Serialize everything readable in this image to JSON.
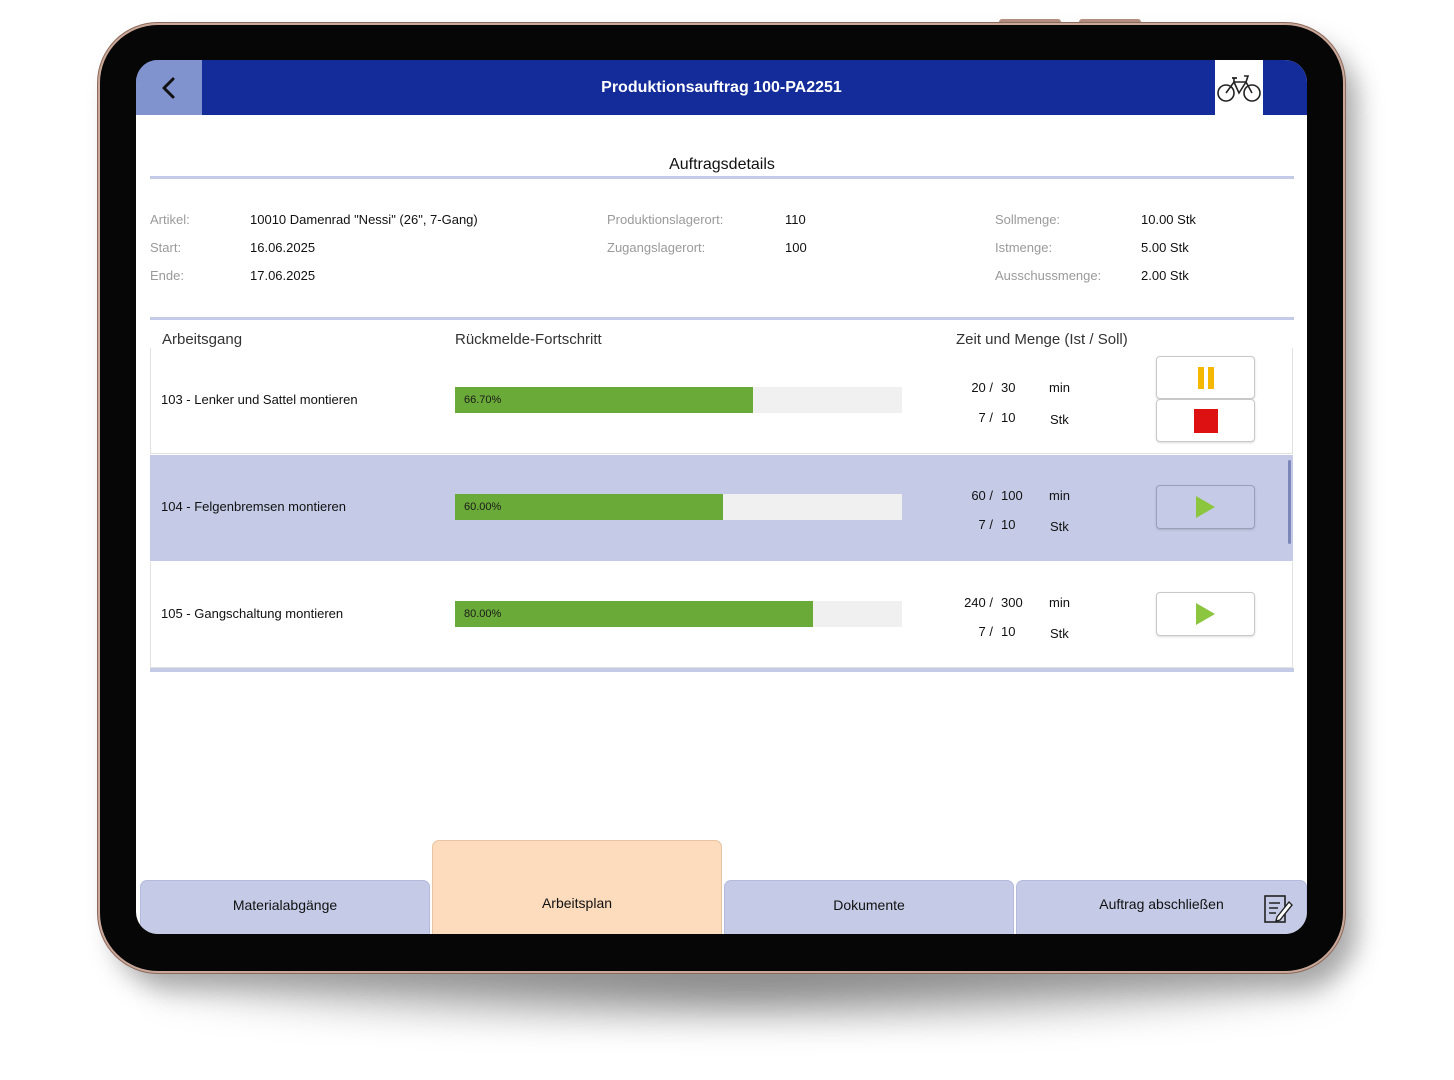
{
  "header": {
    "title": "Produktionsauftrag 100-PA2251",
    "back_icon": "chevron-left-icon",
    "logo_icon": "bicycle-icon"
  },
  "details": {
    "title": "Auftragsdetails",
    "artikel_label": "Artikel:",
    "artikel_value": "10010 Damenrad \"Nessi\" (26\", 7-Gang)",
    "start_label": "Start:",
    "start_value": "16.06.2025",
    "ende_label": "Ende:",
    "ende_value": "17.06.2025",
    "prodlager_label": "Produktionslagerort:",
    "prodlager_value": "110",
    "zugang_label": "Zugangslagerort:",
    "zugang_value": "100",
    "soll_label": "Sollmenge:",
    "soll_value": "10.00 Stk",
    "ist_label": "Istmenge:",
    "ist_value": "5.00 Stk",
    "ausschuss_label": "Ausschussmenge:",
    "ausschuss_value": "2.00 Stk"
  },
  "table": {
    "col_operation": "Arbeitsgang",
    "col_progress": "Rückmelde-Fortschritt",
    "col_time_qty": "Zeit und Menge (Ist / Soll)",
    "rows": [
      {
        "operation": "103 - Lenker und Sattel montieren",
        "progress": 0.667,
        "progress_label": "66.70%",
        "time_ist": "20 /",
        "time_soll": "30",
        "time_unit": "min",
        "qty_ist": "7 /",
        "qty_soll": "10",
        "qty_unit": "Stk",
        "actions": [
          "pause",
          "stop"
        ],
        "selected": false
      },
      {
        "operation": "104 - Felgenbremsen montieren",
        "progress": 0.6,
        "progress_label": "60.00%",
        "time_ist": "60 /",
        "time_soll": "100",
        "time_unit": "min",
        "qty_ist": "7 /",
        "qty_soll": "10",
        "qty_unit": "Stk",
        "actions": [
          "play"
        ],
        "selected": true
      },
      {
        "operation": "105 - Gangschaltung montieren",
        "progress": 0.8,
        "progress_label": "80.00%",
        "time_ist": "240 /",
        "time_soll": "300",
        "time_unit": "min",
        "qty_ist": "7 /",
        "qty_soll": "10",
        "qty_unit": "Stk",
        "actions": [
          "play"
        ],
        "selected": false
      }
    ]
  },
  "tabs": {
    "materialabgaenge": "Materialabgänge",
    "arbeitsplan": "Arbeitsplan",
    "dokumente": "Dokumente",
    "abschliessen": "Auftrag abschließen",
    "active": "arbeitsplan",
    "abschliessen_icon": "edit-document-icon"
  },
  "colors": {
    "header": "#142b9a",
    "selected_row": "#c5cbe7",
    "progress_fill": "#6aaa38",
    "active_tab": "#fddcbd",
    "tab": "#c5cbe7",
    "play": "#8cc63f",
    "pause": "#f5b800",
    "stop": "#dd1111"
  }
}
